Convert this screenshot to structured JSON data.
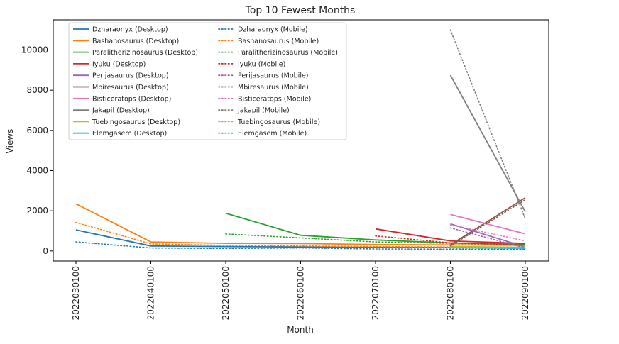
{
  "chart_data": {
    "type": "line",
    "title": "Top 10 Fewest Months",
    "xlabel": "Month",
    "ylabel": "Views",
    "categories": [
      "2022030100",
      "2022040100",
      "2022050100",
      "2022060100",
      "2022070100",
      "2022080100",
      "2022090100"
    ],
    "ylim": [
      -500,
      11500
    ],
    "yticks": [
      0,
      2000,
      4000,
      6000,
      8000,
      10000
    ],
    "grid": false,
    "legend_position": "upper-left",
    "series": [
      {
        "name": "Dzharaonyx (Desktop)",
        "color": "#1f77b4",
        "style": "solid",
        "values": [
          1050,
          250,
          220,
          200,
          180,
          170,
          160
        ]
      },
      {
        "name": "Bashanosaurus (Desktop)",
        "color": "#ff7f0e",
        "style": "solid",
        "values": [
          2350,
          450,
          380,
          370,
          320,
          300,
          280
        ]
      },
      {
        "name": "Paralitherizinosaurus (Desktop)",
        "color": "#2ca02c",
        "style": "solid",
        "values": [
          null,
          null,
          1880,
          780,
          550,
          400,
          330
        ]
      },
      {
        "name": "Iyuku (Desktop)",
        "color": "#d62728",
        "style": "solid",
        "values": [
          null,
          null,
          null,
          null,
          1100,
          500,
          380
        ]
      },
      {
        "name": "Perijasaurus (Desktop)",
        "color": "#9467bd",
        "style": "solid",
        "values": [
          null,
          null,
          null,
          null,
          null,
          1350,
          200
        ]
      },
      {
        "name": "Mbiresaurus (Desktop)",
        "color": "#8c564b",
        "style": "solid",
        "values": [
          null,
          null,
          null,
          null,
          null,
          300,
          2650
        ]
      },
      {
        "name": "Bisticeratops (Desktop)",
        "color": "#e377c2",
        "style": "solid",
        "values": [
          null,
          null,
          null,
          null,
          null,
          1820,
          850
        ]
      },
      {
        "name": "Jakapil (Desktop)",
        "color": "#7f7f7f",
        "style": "solid",
        "values": [
          null,
          null,
          null,
          null,
          null,
          8750,
          1950
        ]
      },
      {
        "name": "Tuebingosaurus (Desktop)",
        "color": "#bcbd22",
        "style": "solid",
        "values": [
          null,
          null,
          null,
          null,
          null,
          220,
          180
        ]
      },
      {
        "name": "Elemgasem (Desktop)",
        "color": "#17becf",
        "style": "solid",
        "values": [
          null,
          null,
          null,
          null,
          null,
          170,
          140
        ]
      },
      {
        "name": "Dzharaonyx (Mobile)",
        "color": "#1f77b4",
        "style": "dotted",
        "values": [
          450,
          150,
          120,
          150,
          100,
          90,
          80
        ]
      },
      {
        "name": "Bashanosaurus (Mobile)",
        "color": "#ff7f0e",
        "style": "dotted",
        "values": [
          1420,
          350,
          280,
          250,
          220,
          200,
          180
        ]
      },
      {
        "name": "Paralitherizinosaurus (Mobile)",
        "color": "#2ca02c",
        "style": "dotted",
        "values": [
          null,
          null,
          850,
          650,
          450,
          380,
          300
        ]
      },
      {
        "name": "Iyuku (Mobile)",
        "color": "#d62728",
        "style": "dotted",
        "values": [
          null,
          null,
          null,
          null,
          750,
          400,
          300
        ]
      },
      {
        "name": "Perijasaurus (Mobile)",
        "color": "#9467bd",
        "style": "dotted",
        "values": [
          null,
          null,
          null,
          null,
          null,
          1150,
          150
        ]
      },
      {
        "name": "Mbiresaurus (Mobile)",
        "color": "#8c564b",
        "style": "dotted",
        "values": [
          null,
          null,
          null,
          null,
          null,
          250,
          2550
        ]
      },
      {
        "name": "Bisticeratops (Mobile)",
        "color": "#e377c2",
        "style": "dotted",
        "values": [
          null,
          null,
          null,
          null,
          null,
          1300,
          500
        ]
      },
      {
        "name": "Jakapil (Mobile)",
        "color": "#7f7f7f",
        "style": "dotted",
        "values": [
          null,
          null,
          null,
          null,
          null,
          11000,
          1600
        ]
      },
      {
        "name": "Tuebingosaurus (Mobile)",
        "color": "#bcbd22",
        "style": "dotted",
        "values": [
          null,
          null,
          null,
          null,
          null,
          200,
          160
        ]
      },
      {
        "name": "Elemgasem (Mobile)",
        "color": "#17becf",
        "style": "dotted",
        "values": [
          null,
          null,
          null,
          null,
          null,
          150,
          120
        ]
      }
    ]
  }
}
